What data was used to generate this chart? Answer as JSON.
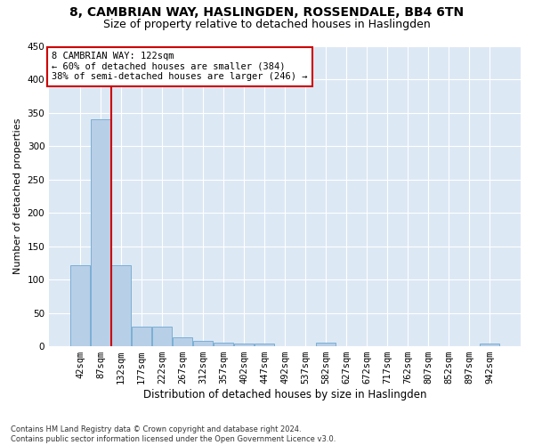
{
  "title": "8, CAMBRIAN WAY, HASLINGDEN, ROSSENDALE, BB4 6TN",
  "subtitle": "Size of property relative to detached houses in Haslingden",
  "xlabel": "Distribution of detached houses by size in Haslingden",
  "ylabel": "Number of detached properties",
  "bin_labels": [
    "42sqm",
    "87sqm",
    "132sqm",
    "177sqm",
    "222sqm",
    "267sqm",
    "312sqm",
    "357sqm",
    "402sqm",
    "447sqm",
    "492sqm",
    "537sqm",
    "582sqm",
    "627sqm",
    "672sqm",
    "717sqm",
    "762sqm",
    "807sqm",
    "852sqm",
    "897sqm",
    "942sqm"
  ],
  "bar_values": [
    122,
    340,
    122,
    29,
    29,
    14,
    8,
    6,
    4,
    4,
    0,
    0,
    5,
    0,
    0,
    0,
    0,
    0,
    0,
    0,
    4
  ],
  "bar_color": "#b8cfe8",
  "bar_edge_color": "#7aafd4",
  "vline_color": "#cc0000",
  "vline_x": 1.5,
  "annotation_text": "8 CAMBRIAN WAY: 122sqm\n← 60% of detached houses are smaller (384)\n38% of semi-detached houses are larger (246) →",
  "annotation_box_color": "#ffffff",
  "annotation_box_edge": "#cc0000",
  "ylim": [
    0,
    450
  ],
  "yticks": [
    0,
    50,
    100,
    150,
    200,
    250,
    300,
    350,
    400,
    450
  ],
  "bg_color": "#dde8f5",
  "footnote": "Contains HM Land Registry data © Crown copyright and database right 2024.\nContains public sector information licensed under the Open Government Licence v3.0.",
  "title_fontsize": 10,
  "subtitle_fontsize": 9,
  "xlabel_fontsize": 8.5,
  "ylabel_fontsize": 8,
  "tick_fontsize": 7.5,
  "annotation_fontsize": 7.5
}
